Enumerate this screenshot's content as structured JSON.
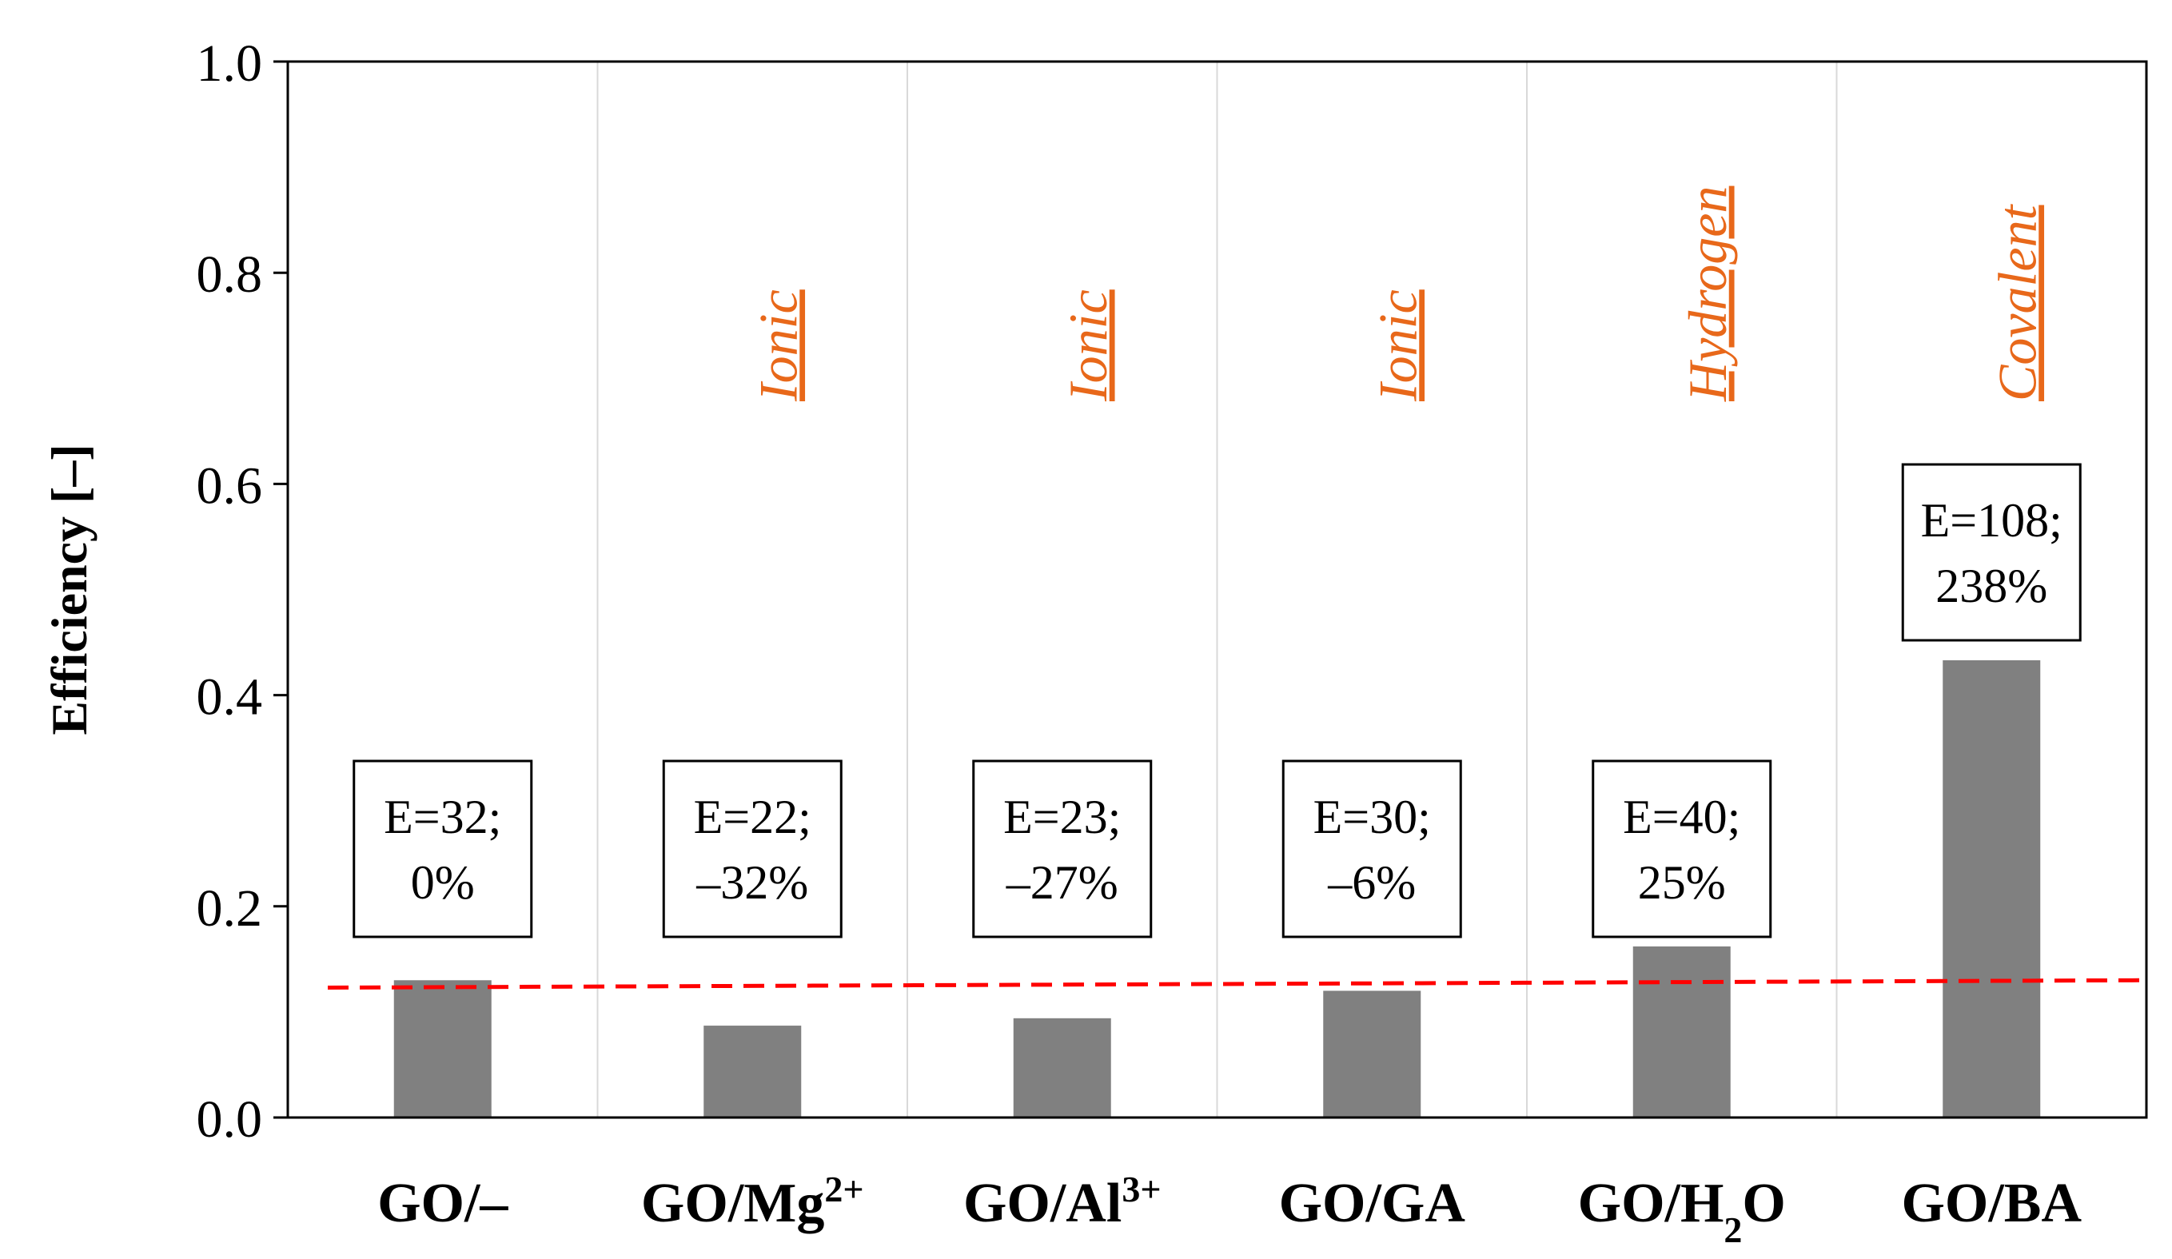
{
  "colors": {
    "bar": "#808080",
    "annotation": "#E8681A",
    "baseline": "#FF0000",
    "divider": "#d9d9d9",
    "axis": "#000000"
  },
  "chart_data": {
    "type": "bar",
    "ylabel": "Efficiency [–]",
    "ylim": [
      0,
      1.0
    ],
    "yticks": [
      "0.0",
      "0.2",
      "0.4",
      "0.6",
      "0.8",
      "1.0"
    ],
    "categories": [
      {
        "base": "GO/–",
        "sup": "",
        "sub": "",
        "tail": ""
      },
      {
        "base": "GO/Mg",
        "sup": "2+",
        "sub": "",
        "tail": ""
      },
      {
        "base": "GO/Al",
        "sup": "3+",
        "sub": "",
        "tail": ""
      },
      {
        "base": "GO/GA",
        "sup": "",
        "sub": "",
        "tail": ""
      },
      {
        "base": "GO/H",
        "sup": "",
        "sub": "2",
        "tail": "O"
      },
      {
        "base": "GO/BA",
        "sup": "",
        "sub": "",
        "tail": ""
      }
    ],
    "values": [
      0.13,
      0.087,
      0.094,
      0.12,
      0.162,
      0.433
    ],
    "bond_types": [
      "",
      "Ionic",
      "Ionic",
      "Ionic",
      "Hydrogen",
      "Covalent"
    ],
    "labels": [
      [
        "E=32;",
        "0%"
      ],
      [
        "E=22;",
        "–32%"
      ],
      [
        "E=23;",
        "–27%"
      ],
      [
        "E=30;",
        "–6%"
      ],
      [
        "E=40;",
        "25%"
      ],
      [
        "E=108;",
        "238%"
      ]
    ],
    "reference_line": {
      "y_start": 0.123,
      "y_end": 0.13,
      "style": "dashed"
    }
  }
}
